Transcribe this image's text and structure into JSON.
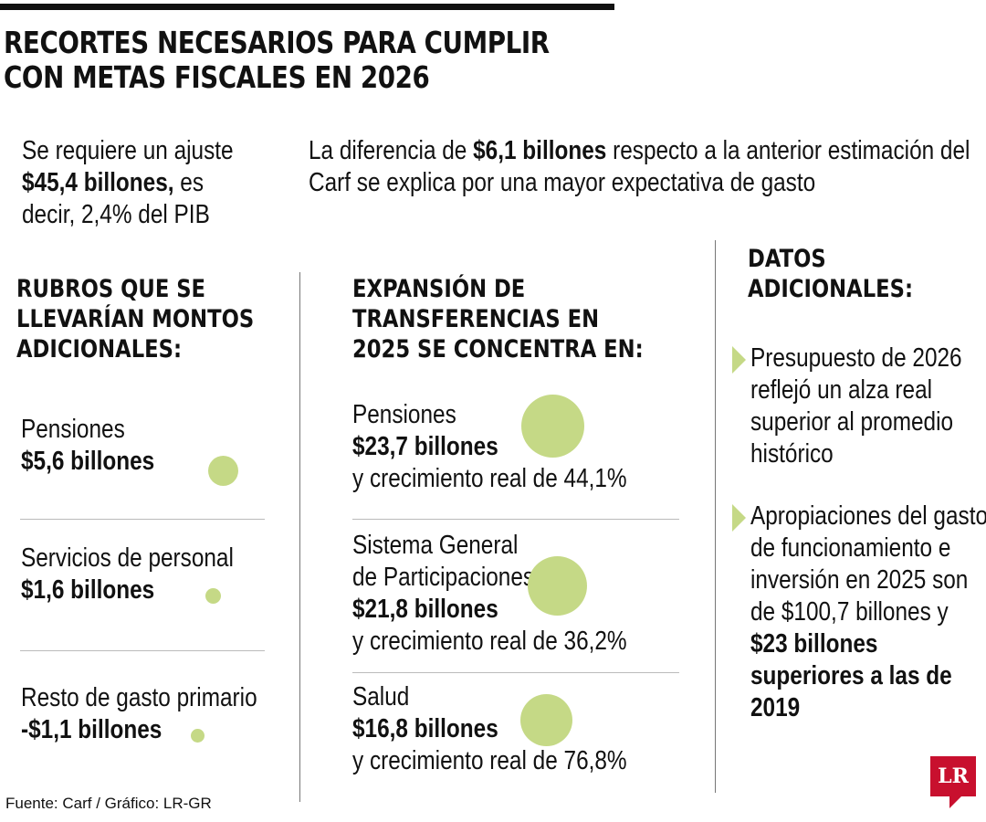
{
  "title": {
    "line1": "RECORTES NECESARIOS PARA CUMPLIR",
    "line2": "CON METAS FISCALES EN 2026"
  },
  "intro_left": {
    "text1": "Se requiere un ajuste",
    "bold": "$45,4 billones,",
    "text2": " es",
    "text3": "decir, 2,4% del PIB"
  },
  "intro_right": {
    "text1": "La diferencia de ",
    "bold": "$6,1 billones",
    "text2": " respecto a la anterior estimación del",
    "text3": "Carf se explica por una mayor expectativa de gasto"
  },
  "col1": {
    "heading": [
      "RUBROS QUE SE",
      "LLEVARÍAN MONTOS",
      "ADICIONALES:"
    ],
    "items": [
      {
        "label": "Pensiones",
        "amount": "$5,6 billones"
      },
      {
        "label": "Servicios de personal",
        "amount": "$1,6 billones"
      },
      {
        "label": "Resto de gasto primario",
        "amount": "-$1,1 billones"
      }
    ]
  },
  "col2": {
    "heading": [
      "EXPANSIÓN DE",
      "TRANSFERENCIAS EN",
      "2025 SE CONCENTRA EN:"
    ],
    "items": [
      {
        "label": "Pensiones",
        "amount": "$23,7 billones",
        "growth": "y crecimiento real de 44,1%"
      },
      {
        "label1": "Sistema General",
        "label2": "de Participaciones",
        "amount": "$21,8 billones",
        "growth": "y crecimiento real de 36,2%"
      },
      {
        "label": "Salud",
        "amount": "$16,8 billones",
        "growth": "y crecimiento real de 76,8%"
      }
    ]
  },
  "col3": {
    "heading": [
      "DATOS",
      "ADICIONALES:"
    ],
    "bullet1": [
      "Presupuesto de 2026",
      "reflejó un alza real",
      "superior al promedio",
      "histórico"
    ],
    "bullet2": [
      "Apropiaciones del gasto",
      "de funcionamiento e",
      "inversión en 2025 son",
      "de $100,7 billones y"
    ],
    "bullet2_bold": [
      "$23 billones",
      "superiores a las de",
      "2019"
    ]
  },
  "source": "Fuente: Carf / Gráfico: LR-GR",
  "logo": "LR",
  "colors": {
    "accent": "#c5d986",
    "logo": "#c8102e"
  }
}
